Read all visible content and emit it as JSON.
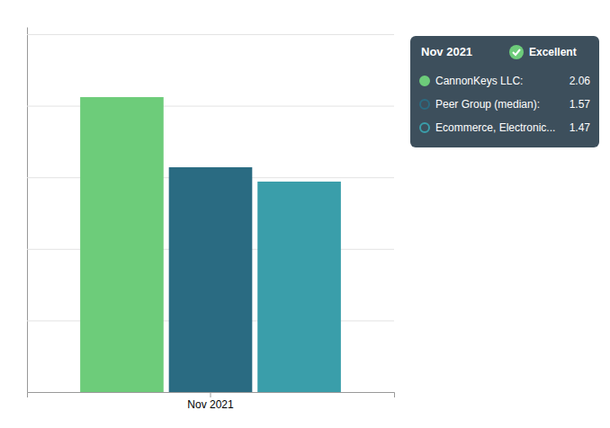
{
  "chart_data": {
    "type": "bar",
    "categories": [
      "Nov 2021"
    ],
    "series": [
      {
        "name": "CannonKeys LLC:",
        "color": "#6dcc7a",
        "values": [
          2.06
        ]
      },
      {
        "name": "Peer Group (median):",
        "color": "#2a6b82",
        "values": [
          1.57
        ]
      },
      {
        "name": "Ecommerce, Electronic...",
        "color": "#3a9eaa",
        "values": [
          1.47
        ]
      }
    ],
    "ylim": [
      0,
      2.55
    ],
    "yticks": [
      0.5,
      1.0,
      1.5,
      2.0,
      2.5
    ],
    "grid": true,
    "tick_labels": "x",
    "legend": "right",
    "annotations": [
      "Excellent"
    ]
  }
}
